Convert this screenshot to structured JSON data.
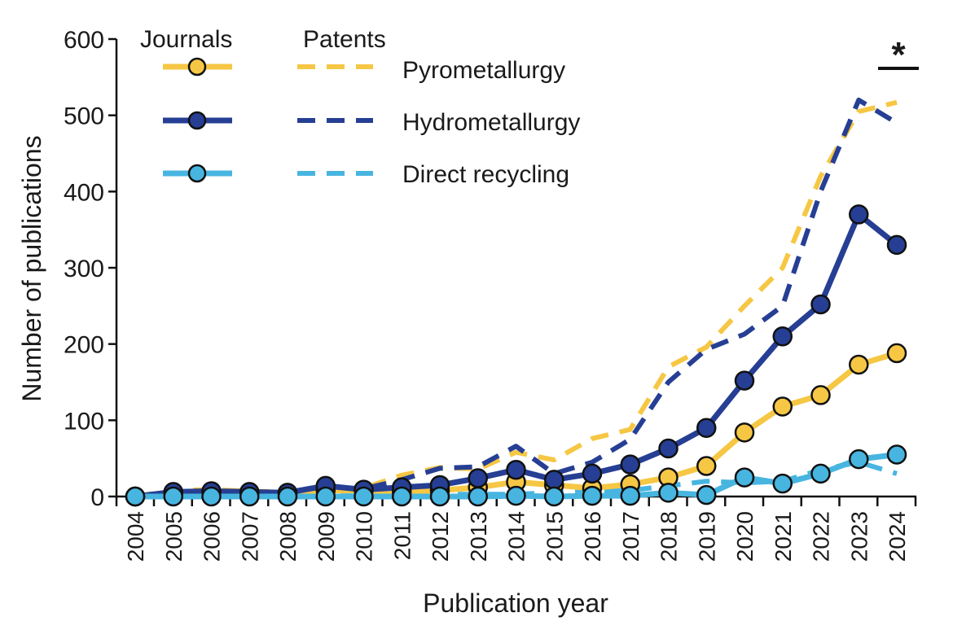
{
  "chart_data": {
    "type": "line",
    "title": "",
    "xlabel": "Publication year",
    "ylabel": "Number of publications",
    "ylim": [
      0,
      600
    ],
    "yticks": [
      0,
      100,
      200,
      300,
      400,
      500,
      600
    ],
    "x": [
      2004,
      2005,
      2006,
      2007,
      2008,
      2009,
      2010,
      2011,
      2012,
      2013,
      2014,
      2015,
      2016,
      2017,
      2018,
      2019,
      2020,
      2021,
      2022,
      2023,
      2024
    ],
    "grid": false,
    "legend_position": "top-left",
    "legend_headers": {
      "journals": "Journals",
      "patents": "Patents"
    },
    "annotation": "*",
    "series": [
      {
        "name": "Pyrometallurgy",
        "source": "Patents",
        "style": "dashed",
        "color": "#F6C744",
        "values": [
          0,
          8,
          9,
          7,
          6,
          9,
          11,
          28,
          38,
          36,
          58,
          48,
          76,
          88,
          170,
          196,
          250,
          300,
          420,
          505,
          517
        ]
      },
      {
        "name": "Hydrometallurgy",
        "source": "Patents",
        "style": "dashed",
        "color": "#263F94",
        "values": [
          0,
          5,
          6,
          6,
          5,
          13,
          10,
          22,
          37,
          39,
          66,
          30,
          45,
          75,
          150,
          193,
          213,
          250,
          400,
          520,
          490
        ]
      },
      {
        "name": "Direct recycling",
        "source": "Patents",
        "style": "dashed",
        "color": "#47B5E0",
        "values": [
          0,
          1,
          1,
          1,
          1,
          1,
          1,
          2,
          3,
          3,
          3,
          5,
          6,
          8,
          14,
          20,
          18,
          20,
          35,
          45,
          30
        ]
      },
      {
        "name": "Pyrometallurgy",
        "source": "Journals",
        "style": "solid",
        "color": "#F6C744",
        "values": [
          0,
          4,
          6,
          5,
          4,
          8,
          8,
          6,
          8,
          12,
          19,
          15,
          11,
          16,
          25,
          40,
          84,
          118,
          133,
          173,
          188
        ]
      },
      {
        "name": "Hydrometallurgy",
        "source": "Journals",
        "style": "solid",
        "color": "#263F94",
        "values": [
          0,
          6,
          7,
          6,
          5,
          14,
          9,
          12,
          15,
          24,
          35,
          22,
          30,
          42,
          63,
          90,
          152,
          210,
          252,
          370,
          330
        ]
      },
      {
        "name": "Direct recycling",
        "source": "Journals",
        "style": "solid",
        "color": "#47B5E0",
        "values": [
          0,
          0,
          0,
          0,
          0,
          0,
          0,
          0,
          0,
          0,
          1,
          0,
          1,
          1,
          5,
          2,
          25,
          17,
          30,
          49,
          55
        ]
      }
    ]
  }
}
